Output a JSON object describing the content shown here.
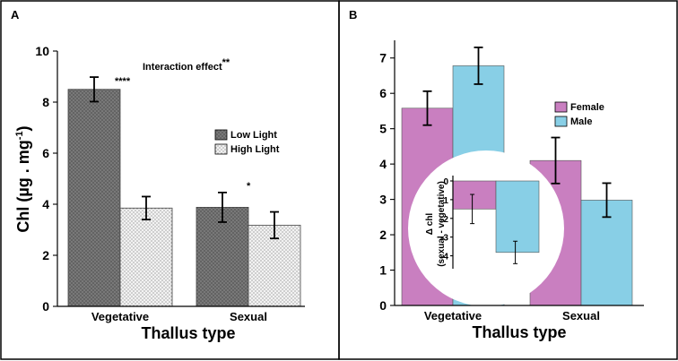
{
  "chart_data": [
    {
      "panel": "A",
      "type": "bar",
      "ylabel_main": "Chl (µg . mg",
      "ylabel_sup": "-1",
      "ylabel_close": ")",
      "xlabel": "Thallus type",
      "ylim": [
        0,
        10
      ],
      "yticks": [
        0,
        2,
        4,
        6,
        8,
        10
      ],
      "categories": [
        "Vegetative",
        "Sexual"
      ],
      "series": [
        {
          "name": "Low Light",
          "color": "#7d7d7d",
          "pattern": "cross",
          "values": [
            8.5,
            3.88
          ],
          "errors": [
            0.48,
            0.58
          ]
        },
        {
          "name": "High Light",
          "color": "#eeeeee",
          "pattern": "dots",
          "values": [
            3.85,
            3.18
          ],
          "errors": [
            0.45,
            0.52
          ]
        }
      ],
      "annotations": {
        "sig_vegetative": "****",
        "sig_sexual": "*",
        "interaction_text": "Interaction effect",
        "interaction_sig": "**"
      }
    },
    {
      "panel": "B",
      "type": "bar",
      "ylabel": "",
      "xlabel": "Thallus type",
      "ylim": [
        0,
        7.5
      ],
      "yticks": [
        0,
        1,
        2,
        3,
        4,
        5,
        6,
        7
      ],
      "categories": [
        "Vegetative",
        "Sexual"
      ],
      "series": [
        {
          "name": "Female",
          "color": "#c97fc0",
          "values": [
            5.58,
            4.1
          ],
          "errors": [
            0.48,
            0.65
          ]
        },
        {
          "name": "Male",
          "color": "#88cfe6",
          "values": [
            6.78,
            2.98
          ],
          "errors": [
            0.52,
            0.48
          ]
        }
      ],
      "inset": {
        "ylabel_line1": "Δ chl",
        "ylabel_line2": "(sexual - vegetative)",
        "ylim": [
          -4.5,
          0
        ],
        "yticks": [
          0,
          -1,
          -2,
          -3,
          -4
        ],
        "series": [
          {
            "name": "Female",
            "color": "#c97fc0",
            "value": -1.5,
            "error": 0.78
          },
          {
            "name": "Male",
            "color": "#88cfe6",
            "value": -3.82,
            "error": 0.6
          }
        ]
      }
    }
  ]
}
